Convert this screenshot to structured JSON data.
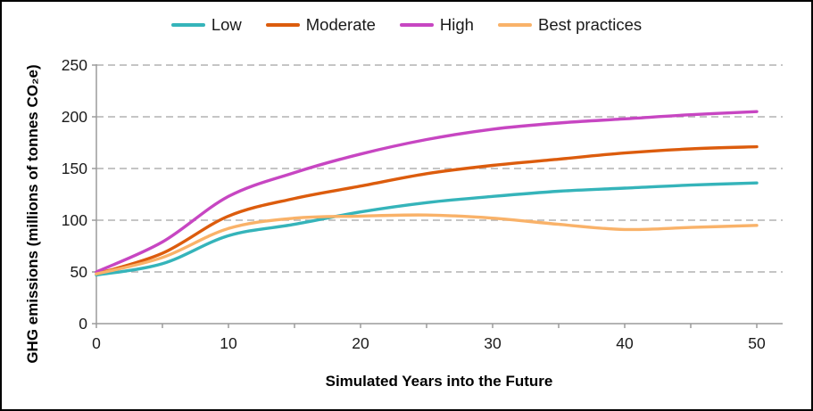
{
  "chart_data": {
    "type": "line",
    "x": [
      0,
      5,
      10,
      15,
      20,
      25,
      30,
      35,
      40,
      45,
      50
    ],
    "series": [
      {
        "name": "Low",
        "color": "#35b4ba",
        "values": [
          47,
          58,
          85,
          96,
          108,
          117,
          123,
          128,
          131,
          134,
          136
        ]
      },
      {
        "name": "Moderate",
        "color": "#dc5c0d",
        "values": [
          48,
          68,
          104,
          121,
          133,
          145,
          153,
          159,
          165,
          169,
          171
        ]
      },
      {
        "name": "High",
        "color": "#c746c2",
        "values": [
          50,
          79,
          123,
          146,
          164,
          178,
          188,
          194,
          198,
          202,
          205
        ]
      },
      {
        "name": "Best practices",
        "color": "#f9b269",
        "values": [
          48,
          64,
          92,
          102,
          104,
          105,
          102,
          96,
          91,
          93,
          95
        ]
      }
    ],
    "title": "",
    "xlabel": "Simulated Years into the Future",
    "ylabel": "GHG emissions (millions of tonnes CO₂e)",
    "xlim": [
      0,
      50
    ],
    "ylim": [
      0,
      250
    ],
    "x_tick_labels": [
      0,
      10,
      20,
      30,
      40,
      50
    ],
    "x_minor_tick_step": 5,
    "y_ticks": [
      0,
      50,
      100,
      150,
      200,
      250
    ],
    "grid": "dashed horizontal",
    "grid_color": "#b2b2b2",
    "axis_color": "#9b9b9b",
    "legend_position": "top"
  }
}
